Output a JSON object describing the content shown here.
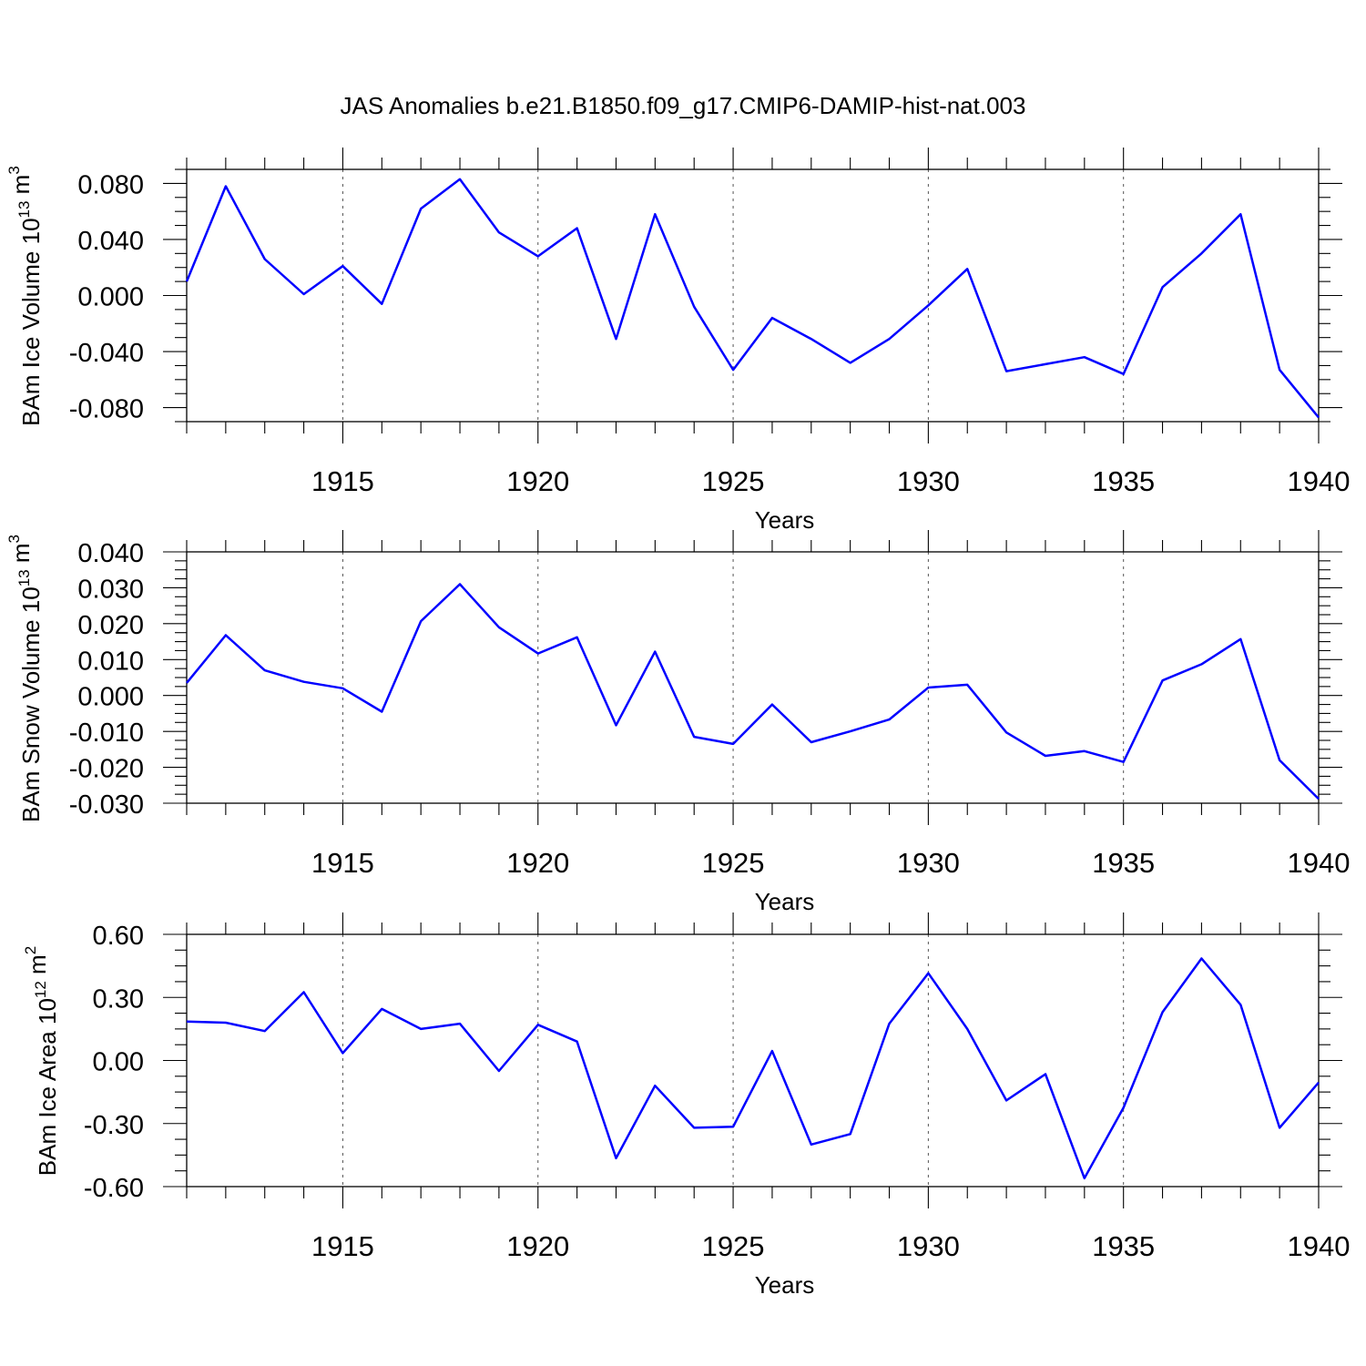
{
  "title": "JAS Anomalies b.e21.B1850.f09_g17.CMIP6-DAMIP-hist-nat.003",
  "colors": {
    "series": "#0000ff",
    "axis": "#000000",
    "grid": "#555555"
  },
  "chart_data": [
    {
      "type": "line",
      "ylabel": "BAm Ice Volume 10",
      "ylabel_exponent": "13",
      "ylabel_unit": " m",
      "ylabel_unit_exponent": "3",
      "xlabel": "Years",
      "xlim": [
        1911,
        1940
      ],
      "ylim": [
        -0.09,
        0.09
      ],
      "xticks": [
        1915,
        1920,
        1925,
        1930,
        1935,
        1940
      ],
      "xtick_labels": [
        "1915",
        "1920",
        "1925",
        "1930",
        "1935",
        "1940"
      ],
      "yticks": [
        -0.08,
        -0.04,
        0.0,
        0.04,
        0.08
      ],
      "ytick_labels": [
        "-0.080",
        "-0.040",
        "0.000",
        "0.040",
        "0.080"
      ],
      "grid": "x-dashed",
      "x": [
        1911,
        1912,
        1913,
        1914,
        1915,
        1916,
        1917,
        1918,
        1919,
        1920,
        1921,
        1922,
        1923,
        1924,
        1925,
        1926,
        1927,
        1928,
        1929,
        1930,
        1931,
        1932,
        1933,
        1934,
        1935,
        1936,
        1937,
        1938,
        1939,
        1940
      ],
      "values": [
        0.01,
        0.078,
        0.026,
        0.001,
        0.021,
        -0.006,
        0.062,
        0.083,
        0.045,
        0.028,
        0.048,
        -0.031,
        0.058,
        -0.008,
        -0.053,
        -0.016,
        -0.031,
        -0.048,
        -0.031,
        -0.007,
        0.019,
        -0.054,
        -0.049,
        -0.044,
        -0.056,
        0.006,
        0.03,
        0.058,
        -0.053,
        -0.087
      ]
    },
    {
      "type": "line",
      "ylabel": "BAm Snow Volume 10",
      "ylabel_exponent": "13",
      "ylabel_unit": " m",
      "ylabel_unit_exponent": "3",
      "xlabel": "Years",
      "xlim": [
        1911,
        1940
      ],
      "ylim": [
        -0.03,
        0.04
      ],
      "xticks": [
        1915,
        1920,
        1925,
        1930,
        1935,
        1940
      ],
      "xtick_labels": [
        "1915",
        "1920",
        "1925",
        "1930",
        "1935",
        "1940"
      ],
      "yticks": [
        -0.03,
        -0.02,
        -0.01,
        0.0,
        0.01,
        0.02,
        0.03,
        0.04
      ],
      "ytick_labels": [
        "-0.030",
        "-0.020",
        "-0.010",
        "0.000",
        "0.010",
        "0.020",
        "0.030",
        "0.040"
      ],
      "grid": "x-dashed",
      "x": [
        1911,
        1912,
        1913,
        1914,
        1915,
        1916,
        1917,
        1918,
        1919,
        1920,
        1921,
        1922,
        1923,
        1924,
        1925,
        1926,
        1927,
        1928,
        1929,
        1930,
        1931,
        1932,
        1933,
        1934,
        1935,
        1936,
        1937,
        1938,
        1939,
        1940
      ],
      "values": [
        0.0035,
        0.0168,
        0.007,
        0.0038,
        0.002,
        -0.0045,
        0.0207,
        0.031,
        0.019,
        0.0117,
        0.0162,
        -0.0083,
        0.0122,
        -0.0115,
        -0.0135,
        -0.0025,
        -0.013,
        -0.01,
        -0.0067,
        0.0022,
        0.003,
        -0.0103,
        -0.0168,
        -0.0155,
        -0.0185,
        0.0042,
        0.0087,
        0.0157,
        -0.018,
        -0.0288
      ]
    },
    {
      "type": "line",
      "ylabel": "BAm Ice Area 10",
      "ylabel_exponent": "12",
      "ylabel_unit": " m",
      "ylabel_unit_exponent": "2",
      "xlabel": "Years",
      "xlim": [
        1911,
        1940
      ],
      "ylim": [
        -0.6,
        0.6
      ],
      "xticks": [
        1915,
        1920,
        1925,
        1930,
        1935,
        1940
      ],
      "xtick_labels": [
        "1915",
        "1920",
        "1925",
        "1930",
        "1935",
        "1940"
      ],
      "yticks": [
        -0.6,
        -0.3,
        0.0,
        0.3,
        0.6
      ],
      "ytick_labels": [
        "-0.60",
        "-0.30",
        "0.00",
        "0.30",
        "0.60"
      ],
      "grid": "x-dashed",
      "x": [
        1911,
        1912,
        1913,
        1914,
        1915,
        1916,
        1917,
        1918,
        1919,
        1920,
        1921,
        1922,
        1923,
        1924,
        1925,
        1926,
        1927,
        1928,
        1929,
        1930,
        1931,
        1932,
        1933,
        1934,
        1935,
        1936,
        1937,
        1938,
        1939,
        1940
      ],
      "values": [
        0.185,
        0.18,
        0.14,
        0.325,
        0.035,
        0.245,
        0.15,
        0.175,
        -0.05,
        0.17,
        0.09,
        -0.465,
        -0.12,
        -0.32,
        -0.315,
        0.045,
        -0.4,
        -0.35,
        0.175,
        0.415,
        0.15,
        -0.19,
        -0.065,
        -0.56,
        -0.225,
        0.23,
        0.485,
        0.265,
        -0.32,
        -0.105
      ]
    }
  ]
}
